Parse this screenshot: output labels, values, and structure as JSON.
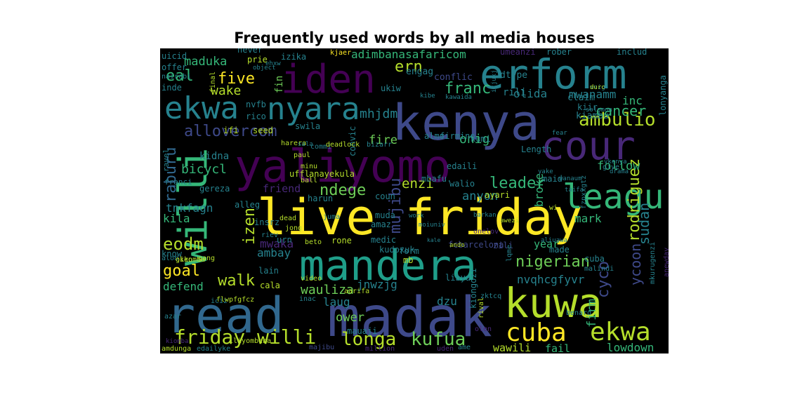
{
  "title": "Frequently used words by all media houses",
  "colors": {
    "background": "#000000",
    "palette": [
      "#fde725",
      "#b5de2b",
      "#6ece58",
      "#35b779",
      "#1f9e89",
      "#26828e",
      "#31688e",
      "#3e4989",
      "#482878",
      "#440154"
    ]
  },
  "words": [
    {
      "text": "live friday",
      "color": "#fde725",
      "rotate": 0
    },
    {
      "text": "madak",
      "color": "#3e4989",
      "rotate": 0
    },
    {
      "text": "mandera",
      "color": "#1f9e89",
      "rotate": 0
    },
    {
      "text": "kenya",
      "color": "#3e4989",
      "rotate": 0
    },
    {
      "text": "yaliyomo",
      "color": "#440154",
      "rotate": 0
    },
    {
      "text": "read",
      "color": "#31688e",
      "rotate": 0
    },
    {
      "text": "erform",
      "color": "#26828e",
      "rotate": 0
    },
    {
      "text": "cour",
      "color": "#482878",
      "rotate": 0
    },
    {
      "text": "iden",
      "color": "#440154",
      "rotate": 0
    },
    {
      "text": "kuwa",
      "color": "#b5de2b",
      "rotate": 0
    },
    {
      "text": "willi",
      "color": "#35b779",
      "rotate": -90
    },
    {
      "text": "ekwa",
      "color": "#26828e",
      "rotate": 0
    },
    {
      "text": "nyara",
      "color": "#26828e",
      "rotate": 0
    },
    {
      "text": "leagu",
      "color": "#35b779",
      "rotate": 0
    },
    {
      "text": "cuba",
      "color": "#fde725",
      "rotate": 0
    },
    {
      "text": "ekwa",
      "color": "#b5de2b",
      "rotate": 0
    },
    {
      "text": "friday willi",
      "color": "#b5de2b",
      "rotate": 0
    },
    {
      "text": "longa",
      "color": "#b5de2b",
      "rotate": 0
    },
    {
      "text": "kufua",
      "color": "#6ece58",
      "rotate": 0
    },
    {
      "text": "ambulio",
      "color": "#b5de2b",
      "rotate": 0
    },
    {
      "text": "allovercom",
      "color": "#3e4989",
      "rotate": 0
    },
    {
      "text": "rodriguez",
      "color": "#b5de2b",
      "rotate": -90
    },
    {
      "text": "sudan",
      "color": "#26828e",
      "rotate": -90
    },
    {
      "text": "ycoon",
      "color": "#3e4989",
      "rotate": -90
    },
    {
      "text": "cyco",
      "color": "#3e4989",
      "rotate": -90
    },
    {
      "text": "nigerian",
      "color": "#6ece58",
      "rotate": 0
    },
    {
      "text": "raburu",
      "color": "#31688e",
      "rotate": -90
    },
    {
      "text": "mujibu",
      "color": "#3e4989",
      "rotate": -90
    },
    {
      "text": "ndege",
      "color": "#6ece58",
      "rotate": 0
    },
    {
      "text": "leader",
      "color": "#35b779",
      "rotate": 0
    },
    {
      "text": "ern",
      "color": "#b5de2b",
      "rotate": 0
    },
    {
      "text": "franc",
      "color": "#35b779",
      "rotate": 0
    },
    {
      "text": "five",
      "color": "#fde725",
      "rotate": 0
    },
    {
      "text": "eal",
      "color": "#35b779",
      "rotate": 0
    },
    {
      "text": "wake",
      "color": "#b5de2b",
      "rotate": 0
    },
    {
      "text": "cancer",
      "color": "#35b779",
      "rotate": 0
    },
    {
      "text": "mwanamm",
      "color": "#26828e",
      "rotate": 0
    },
    {
      "text": "olida",
      "color": "#26828e",
      "rotate": 0
    },
    {
      "text": "maduka",
      "color": "#35b779",
      "rotate": 0
    },
    {
      "text": "adimbanasafaricom",
      "color": "#35b779",
      "rotate": 0
    },
    {
      "text": "eodm",
      "color": "#b5de2b",
      "rotate": 0
    },
    {
      "text": "izen",
      "color": "#b5de2b",
      "rotate": -90
    },
    {
      "text": "goal",
      "color": "#fde725",
      "rotate": 0
    },
    {
      "text": "walk",
      "color": "#b5de2b",
      "rotate": 0
    },
    {
      "text": "ambay",
      "color": "#26828e",
      "rotate": 0
    },
    {
      "text": "mwaka",
      "color": "#482878",
      "rotate": 0
    },
    {
      "text": "bicycl",
      "color": "#35b779",
      "rotate": 0
    },
    {
      "text": "kidna",
      "color": "#26828e",
      "rotate": 0
    },
    {
      "text": "tnkfagn",
      "color": "#26828e",
      "rotate": 0
    },
    {
      "text": "kila",
      "color": "#35b779",
      "rotate": 0
    },
    {
      "text": "defend",
      "color": "#35b779",
      "rotate": 0
    },
    {
      "text": "wauliza",
      "color": "#6ece58",
      "rotate": 0
    },
    {
      "text": "jnwzjg",
      "color": "#26828e",
      "rotate": 0
    },
    {
      "text": "nvqhcgfyvr",
      "color": "#26828e",
      "rotate": 0
    },
    {
      "text": "lowdown",
      "color": "#35b779",
      "rotate": 0
    },
    {
      "text": "wawili",
      "color": "#b5de2b",
      "rotate": 0
    },
    {
      "text": "fail",
      "color": "#35b779",
      "rotate": 0
    },
    {
      "text": "firm",
      "color": "#35b779",
      "rotate": -90
    },
    {
      "text": "mark",
      "color": "#35b779",
      "rotate": 0
    },
    {
      "text": "year",
      "color": "#35b779",
      "rotate": 0
    },
    {
      "text": "follow",
      "color": "#35b779",
      "rotate": 0
    },
    {
      "text": "enzi",
      "color": "#b5de2b",
      "rotate": 0
    },
    {
      "text": "anyon",
      "color": "#26828e",
      "rotate": 0
    },
    {
      "text": "onig",
      "color": "#35b779",
      "rotate": 0
    },
    {
      "text": "fire",
      "color": "#6ece58",
      "rotate": 0
    },
    {
      "text": "mhjdm",
      "color": "#26828e",
      "rotate": 0
    },
    {
      "text": "friend",
      "color": "#482878",
      "rotate": 0
    },
    {
      "text": "ower",
      "color": "#6ece58",
      "rotate": 0
    },
    {
      "text": "laug",
      "color": "#26828e",
      "rotate": 0
    },
    {
      "text": "dzu",
      "color": "#26828e",
      "rotate": 0
    },
    {
      "text": "broke",
      "color": "#35b779",
      "rotate": -90
    },
    {
      "text": "fin",
      "color": "#6ece58",
      "rotate": -90
    },
    {
      "text": "inc",
      "color": "#35b779",
      "rotate": 0
    },
    {
      "text": "kiambu",
      "color": "#26828e",
      "rotate": 0
    },
    {
      "text": "kiir",
      "color": "#26828e",
      "rotate": 0
    },
    {
      "text": "claim",
      "color": "#26828e",
      "rotate": 0
    },
    {
      "text": "rili",
      "color": "#26828e",
      "rotate": 0
    },
    {
      "text": "engag",
      "color": "#26828e",
      "rotate": 0
    },
    {
      "text": "conflic",
      "color": "#3e4989",
      "rotate": 0
    },
    {
      "text": "ukiw",
      "color": "#26828e",
      "rotate": 0
    },
    {
      "text": "dtype",
      "color": "#26828e",
      "rotate": 0
    },
    {
      "text": "rober",
      "color": "#26828e",
      "rotate": 0
    },
    {
      "text": "includ",
      "color": "#26828e",
      "rotate": 0
    },
    {
      "text": "umeanzi",
      "color": "#482878",
      "rotate": 0
    },
    {
      "text": "lonyanga",
      "color": "#26828e",
      "rotate": -90
    },
    {
      "text": "uicid",
      "color": "#26828e",
      "rotate": 0
    },
    {
      "text": "offer",
      "color": "#26828e",
      "rotate": 0
    },
    {
      "text": "inde",
      "color": "#26828e",
      "rotate": 0
    },
    {
      "text": "never",
      "color": "#26828e",
      "rotate": 0
    },
    {
      "text": "prie",
      "color": "#b5de2b",
      "rotate": 0
    },
    {
      "text": "izika",
      "color": "#26828e",
      "rotate": 0
    },
    {
      "text": "kjaer",
      "color": "#fde725",
      "rotate": 0
    },
    {
      "text": "nvfb",
      "color": "#26828e",
      "rotate": 0
    },
    {
      "text": "rico",
      "color": "#26828e",
      "rotate": 0
    },
    {
      "text": "ifi",
      "color": "#b5de2b",
      "rotate": 0
    },
    {
      "text": "seed",
      "color": "#b5de2b",
      "rotate": 0
    },
    {
      "text": "swila",
      "color": "#26828e",
      "rotate": 0
    },
    {
      "text": "convic",
      "color": "#26828e",
      "rotate": -90
    },
    {
      "text": "almo",
      "color": "#26828e",
      "rotate": 0
    },
    {
      "text": "firmino",
      "color": "#26828e",
      "rotate": 0
    },
    {
      "text": "kumi",
      "color": "#26828e",
      "rotate": 0
    },
    {
      "text": "Length",
      "color": "#26828e",
      "rotate": 0
    },
    {
      "text": "mbafu.",
      "color": "#26828e",
      "rotate": 0
    },
    {
      "text": "walio",
      "color": "#26828e",
      "rotate": 0
    },
    {
      "text": "edaili",
      "color": "#26828e",
      "rotate": 0
    },
    {
      "text": "maid",
      "color": "#26828e",
      "rotate": 0
    },
    {
      "text": "ayari",
      "color": "#b5de2b",
      "rotate": 0
    },
    {
      "text": "anayekula",
      "color": "#b5de2b",
      "rotate": 0
    },
    {
      "text": "uffl",
      "color": "#b5de2b",
      "rotate": 0
    },
    {
      "text": "gereza",
      "color": "#26828e",
      "rotate": 0
    },
    {
      "text": "alleg",
      "color": "#26828e",
      "rotate": 0
    },
    {
      "text": "insrz",
      "color": "#26828e",
      "rotate": 0
    },
    {
      "text": "know",
      "color": "#26828e",
      "rotate": 0
    },
    {
      "text": "lain",
      "color": "#26828e",
      "rotate": 0
    },
    {
      "text": "cala",
      "color": "#b5de2b",
      "rotate": 0
    },
    {
      "text": "inac",
      "color": "#26828e",
      "rotate": 0
    },
    {
      "text": "urn",
      "color": "#26828e",
      "rotate": 0
    },
    {
      "text": "beto",
      "color": "#b5de2b",
      "rotate": 0
    },
    {
      "text": "rone",
      "color": "#b5de2b",
      "rotate": 0
    },
    {
      "text": "kudoxuk",
      "color": "#26828e",
      "rotate": 0
    },
    {
      "text": "form",
      "color": "#26828e",
      "rotate": 0
    },
    {
      "text": "mb",
      "color": "#b5de2b",
      "rotate": 0
    },
    {
      "text": "medic",
      "color": "#26828e",
      "rotate": 0
    },
    {
      "text": "amaz",
      "color": "#26828e",
      "rotate": 0
    },
    {
      "text": "muda",
      "color": "#26828e",
      "rotate": 0
    },
    {
      "text": "coun",
      "color": "#26828e",
      "rotate": 0
    },
    {
      "text": "harun",
      "color": "#26828e",
      "rotate": 0
    },
    {
      "text": "fcbarcelona",
      "color": "#3e4989",
      "rotate": 0
    },
    {
      "text": "libya",
      "color": "#26828e",
      "rotate": 0
    },
    {
      "text": "kiongozi",
      "color": "#26828e",
      "rotate": -90
    },
    {
      "text": "made",
      "color": "#26828e",
      "rotate": 0
    },
    {
      "text": "cuba",
      "color": "#26828e",
      "rotate": 0
    },
    {
      "text": "zili",
      "color": "#3e4989",
      "rotate": 0
    },
    {
      "text": "onelov",
      "color": "#482878",
      "rotate": 0
    },
    {
      "text": "mauaji",
      "color": "#26828e",
      "rotate": 0
    },
    {
      "text": "rival",
      "color": "#b5de2b",
      "rotate": -90
    },
    {
      "text": "zktcq",
      "color": "#26828e",
      "rotate": 0
    },
    {
      "text": "mkurugenzi",
      "color": "#26828e",
      "rotate": -90
    },
    {
      "text": "edailyke",
      "color": "#26828e",
      "rotate": 0
    },
    {
      "text": "amdunga",
      "color": "#b5de2b",
      "rotate": 0
    },
    {
      "text": "iliyombeba",
      "color": "#b5de2b",
      "rotate": 0
    },
    {
      "text": "azar",
      "color": "#26828e",
      "rotate": 0
    },
    {
      "text": "iciz",
      "color": "#26828e",
      "rotate": 0
    },
    {
      "text": "video",
      "color": "#b5de2b",
      "rotate": 0
    },
    {
      "text": "aarifa",
      "color": "#b5de2b",
      "rotate": 0
    },
    {
      "text": "lqme",
      "color": "#26828e",
      "rotate": -90
    },
    {
      "text": "anewday",
      "color": "#482878",
      "rotate": -90
    },
    {
      "text": "malindi",
      "color": "#26828e",
      "rotate": 0
    },
    {
      "text": "benard",
      "color": "#26828e",
      "rotate": 0
    },
    {
      "text": "uden",
      "color": "#482878",
      "rotate": 0
    },
    {
      "text": "million",
      "color": "#482878",
      "rotate": 0
    },
    {
      "text": "ame",
      "color": "#26828e",
      "rotate": 0
    },
    {
      "text": "olen",
      "color": "#482878",
      "rotate": 0
    },
    {
      "text": "majibu",
      "color": "#3e4989",
      "rotate": 0
    },
    {
      "text": "flwpfgfcz",
      "color": "#b5de2b",
      "rotate": 0
    },
    {
      "text": "ravel",
      "color": "#26828e",
      "rotate": -90
    },
    {
      "text": "franci",
      "color": "#26828e",
      "rotate": 0
    },
    {
      "text": "gikomba",
      "color": "#b5de2b",
      "rotate": 0
    },
    {
      "text": "alon",
      "color": "#26828e",
      "rotate": 0
    },
    {
      "text": "oken",
      "color": "#b5de2b",
      "rotate": 0
    },
    {
      "text": "gang",
      "color": "#b5de2b",
      "rotate": 0
    },
    {
      "text": "riev",
      "color": "#26828e",
      "rotate": 0
    },
    {
      "text": "jong",
      "color": "#b5de2b",
      "rotate": 0
    },
    {
      "text": "dead",
      "color": "#b5de2b",
      "rotate": 0
    },
    {
      "text": "juma",
      "color": "#26828e",
      "rotate": 0
    },
    {
      "text": "ball",
      "color": "#b5de2b",
      "rotate": 0
    },
    {
      "text": "minu",
      "color": "#b5de2b",
      "rotate": 0
    },
    {
      "text": "paul",
      "color": "#b5de2b",
      "rotate": 0
    },
    {
      "text": "commi",
      "color": "#26828e",
      "rotate": 0
    },
    {
      "text": "final",
      "color": "#b5de2b",
      "rotate": -90
    },
    {
      "text": "nairobi",
      "color": "#26828e",
      "rotate": 0
    },
    {
      "text": "object",
      "color": "#26828e",
      "rotate": 0
    },
    {
      "text": "ehxw",
      "color": "#26828e",
      "rotate": 0
    },
    {
      "text": "harera",
      "color": "#b5de2b",
      "rotate": 0
    },
    {
      "text": "sala",
      "color": "#26828e",
      "rotate": 0
    },
    {
      "text": "deadlock",
      "color": "#b5de2b",
      "rotate": 0
    },
    {
      "text": "bizarr",
      "color": "#26828e",
      "rotate": 0
    },
    {
      "text": "kibe",
      "color": "#26828e",
      "rotate": 0
    },
    {
      "text": "kawaida",
      "color": "#26828e",
      "rotate": 0
    },
    {
      "text": "itjuxj",
      "color": "#26828e",
      "rotate": -90
    },
    {
      "text": "fear",
      "color": "#26828e",
      "rotate": 0
    },
    {
      "text": "weig",
      "color": "#26828e",
      "rotate": 0
    },
    {
      "text": "solomon",
      "color": "#26828e",
      "rotate": 0
    },
    {
      "text": "durc",
      "color": "#b5de2b",
      "rotate": 0
    },
    {
      "text": "drama",
      "color": "#26828e",
      "rotate": 0
    },
    {
      "text": "give",
      "color": "#26828e",
      "rotate": 0
    },
    {
      "text": "vkenya",
      "color": "#26828e",
      "rotate": 0
    },
    {
      "text": "yake",
      "color": "#26828e",
      "rotate": 0
    },
    {
      "text": "wanaum",
      "color": "#26828e",
      "rotate": 0
    },
    {
      "text": "taifa",
      "color": "#26828e",
      "rotate": 0
    },
    {
      "text": "moiuniv",
      "color": "#26828e",
      "rotate": 0
    },
    {
      "text": "work",
      "color": "#26828e",
      "rotate": 0
    },
    {
      "text": "barkan",
      "color": "#26828e",
      "rotate": 0
    },
    {
      "text": "awezi",
      "color": "#b5de2b",
      "rotate": 0
    },
    {
      "text": "aliuawa",
      "color": "#26828e",
      "rotate": 0
    },
    {
      "text": "ando",
      "color": "#b5de2b",
      "rotate": 0
    },
    {
      "text": "wi",
      "color": "#b5de2b",
      "rotate": 0
    },
    {
      "text": "fzpxxgtz",
      "color": "#26828e",
      "rotate": -90
    },
    {
      "text": "kiomba",
      "color": "#482878",
      "rotate": 0
    },
    {
      "text": "kale",
      "color": "#26828e",
      "rotate": 0
    }
  ]
}
